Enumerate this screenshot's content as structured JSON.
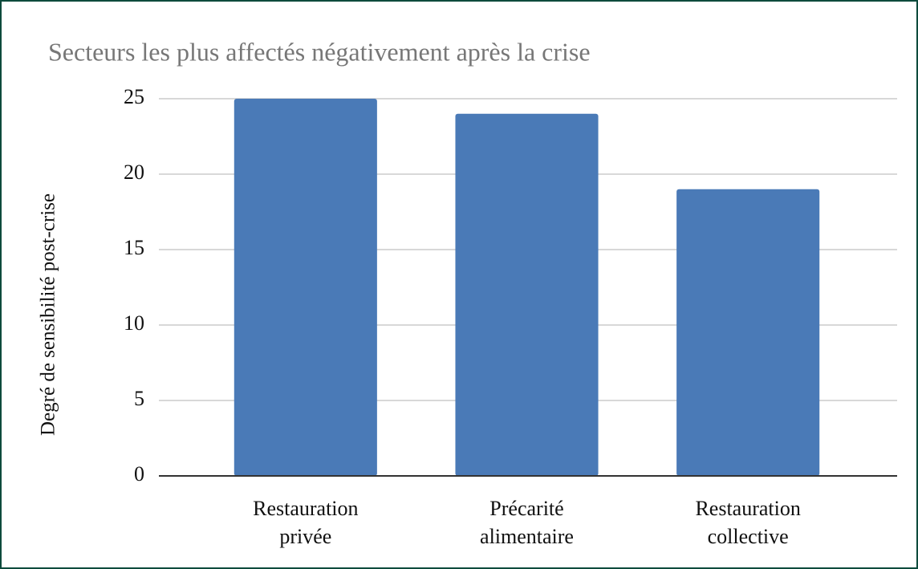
{
  "chart_data": {
    "type": "bar",
    "title": "Secteurs les plus affectés négativement après la crise",
    "y_label": "Degré de sensibilité post-crise",
    "categories": [
      "Restauration privée",
      "Précarité alimentaire",
      "Restauration collective"
    ],
    "values": [
      25,
      24,
      19
    ],
    "color": "#4a7ab7",
    "ylim": [
      0,
      25
    ],
    "yticks": [
      0,
      5,
      10,
      15,
      20,
      25
    ],
    "grid": true
  }
}
